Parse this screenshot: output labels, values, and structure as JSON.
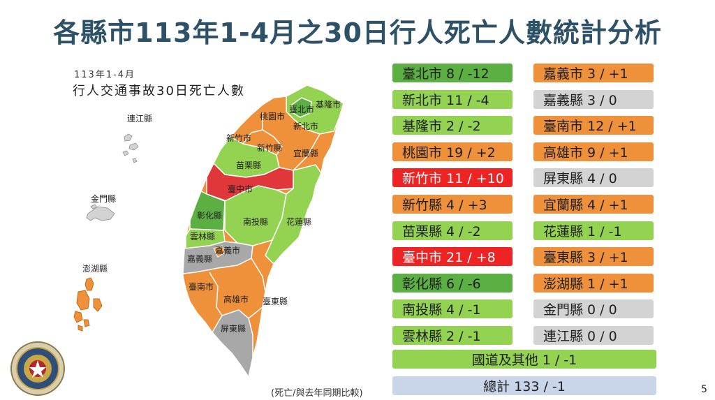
{
  "title": "各縣市113年1-4月之30日行人死亡人數統計分析",
  "subtitle_period": "113年1-4月",
  "subtitle_desc": "行人交通事故30日死亡人數",
  "note": "(死亡/與去年同期比較)",
  "page_number": "5",
  "colors": {
    "dark_green": "#5cb043",
    "light_green": "#94d251",
    "orange": "#ee913a",
    "red": "#ee2324",
    "gray": "#d3d3d3",
    "blue": "#c9d6ea"
  },
  "left_column": [
    {
      "label": "臺北市  8 / -12",
      "color": "dark_green"
    },
    {
      "label": "新北市  11 / -4",
      "color": "light_green"
    },
    {
      "label": "基隆市  2 / -2",
      "color": "light_green"
    },
    {
      "label": "桃園市  19 / +2",
      "color": "orange"
    },
    {
      "label": "新竹市  11 / +10",
      "color": "red"
    },
    {
      "label": "新竹縣  4 / +3",
      "color": "orange"
    },
    {
      "label": "苗栗縣  4 / -2",
      "color": "light_green"
    },
    {
      "label": "臺中市  21 / +8",
      "color": "red"
    },
    {
      "label": "彰化縣  6 / -6",
      "color": "dark_green"
    },
    {
      "label": "南投縣  4 / -1",
      "color": "light_green"
    },
    {
      "label": "雲林縣  2 / -1",
      "color": "light_green"
    }
  ],
  "right_column": [
    {
      "label": "嘉義市  3 / +1",
      "color": "orange"
    },
    {
      "label": "嘉義縣  3 / 0",
      "color": "gray"
    },
    {
      "label": "臺南市  12 / +1",
      "color": "orange"
    },
    {
      "label": "高雄市  9 / +1",
      "color": "orange"
    },
    {
      "label": "屏東縣  4 / 0",
      "color": "gray"
    },
    {
      "label": "宜蘭縣  4 / +1",
      "color": "orange"
    },
    {
      "label": "花蓮縣  1 / -1",
      "color": "light_green"
    },
    {
      "label": "臺東縣  3 / +1",
      "color": "orange"
    },
    {
      "label": "澎湖縣  1 / +1",
      "color": "orange"
    },
    {
      "label": "金門縣  0 / 0",
      "color": "gray"
    },
    {
      "label": "連江縣  0 / 0",
      "color": "gray"
    }
  ],
  "other_highways": "國道及其他  1  /  -1",
  "total": "總計    133 / -1",
  "map_labels": {
    "taipei": "臺北市",
    "keelung": "基隆市",
    "new_taipei": "新北市",
    "taoyuan": "桃園市",
    "hsinchu_city": "新竹市",
    "hsinchu_county": "新竹縣",
    "yilan": "宜蘭縣",
    "miaoli": "苗栗縣",
    "taichung": "臺中市",
    "changhua": "彰化縣",
    "nantou": "南投縣",
    "hualien": "花蓮縣",
    "yunlin": "雲林縣",
    "chiayi_city": "嘉義市",
    "chiayi_county": "嘉義縣",
    "tainan": "臺南市",
    "kaohsiung": "高雄市",
    "taitung": "臺東縣",
    "pingtung": "屏東縣",
    "lienchiang": "連江縣",
    "kinmen": "金門縣",
    "penghu": "澎湖縣"
  }
}
